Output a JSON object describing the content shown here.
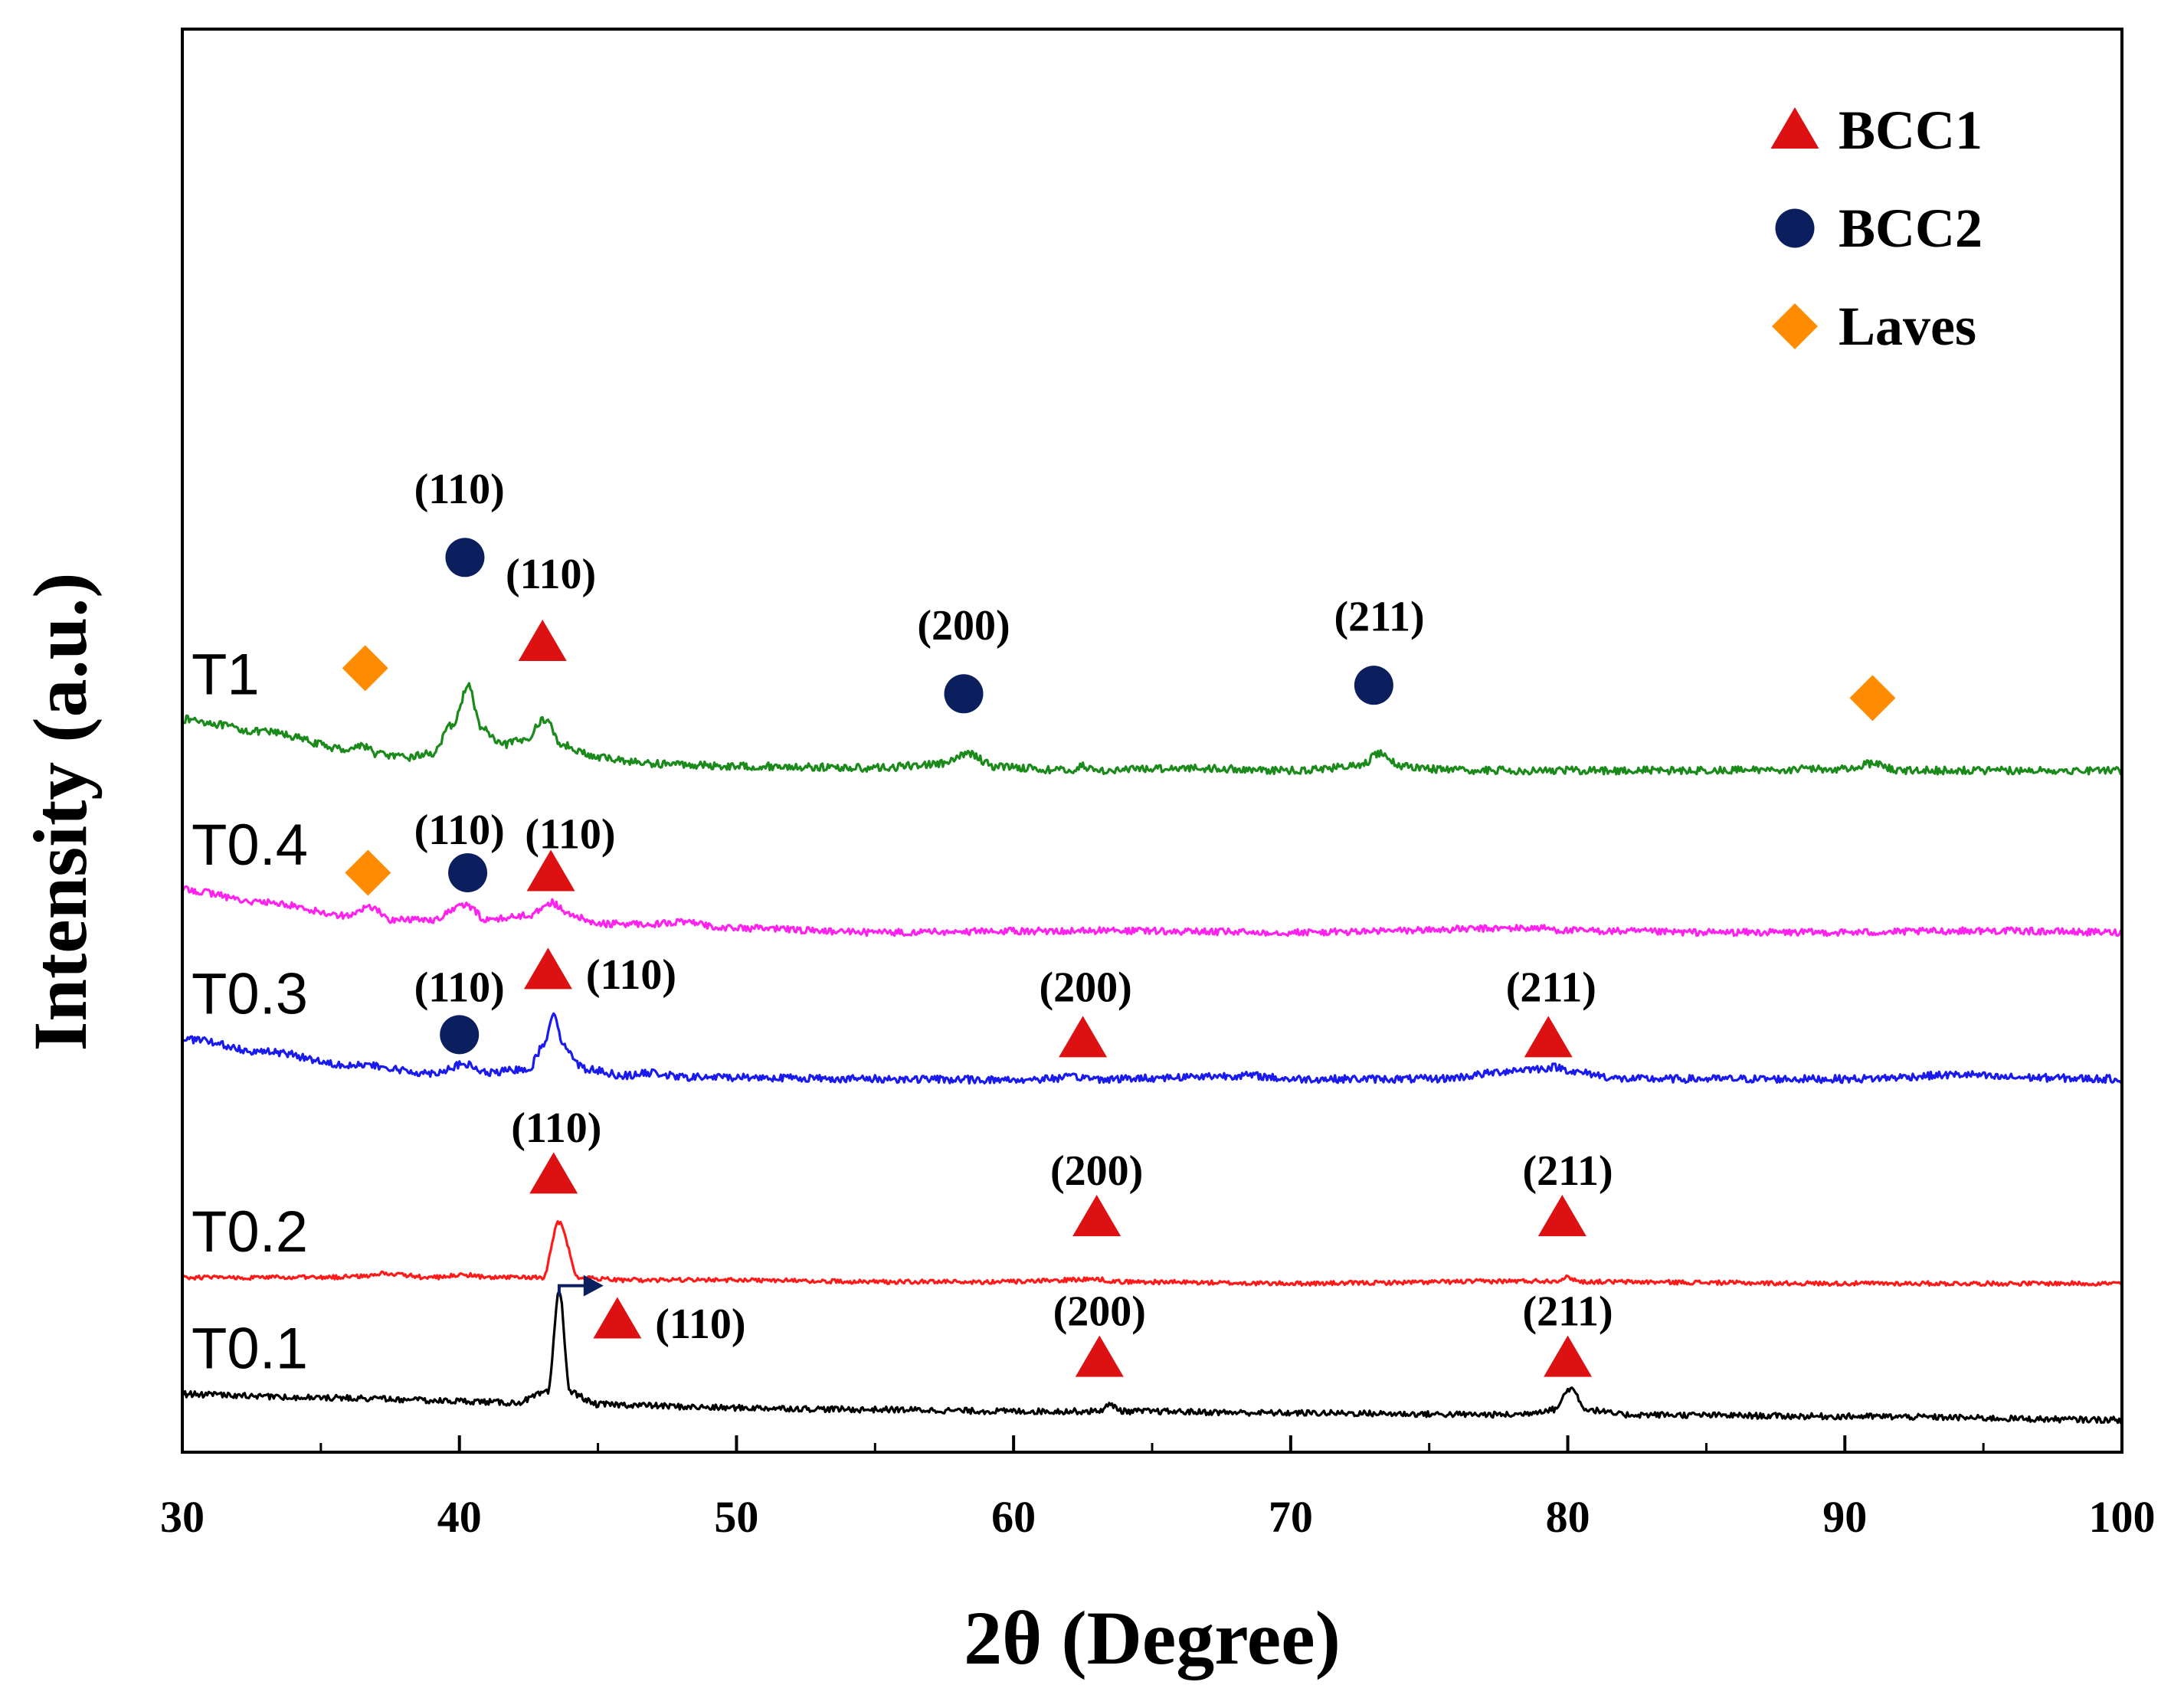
{
  "chart_data": {
    "type": "line",
    "title": "",
    "xlabel": "2θ (Degree)",
    "ylabel": "Intensity (a.u.)",
    "xlim": [
      30,
      100
    ],
    "xticks": [
      30,
      40,
      50,
      60,
      70,
      80,
      90,
      100
    ],
    "yticks_visible": false,
    "legend": {
      "placement": "top-right",
      "entries": [
        {
          "label": "BCC1",
          "marker": "triangle",
          "color": "#dd1111"
        },
        {
          "label": "BCC2",
          "marker": "circle",
          "color": "#0b1f5e"
        },
        {
          "label": "Laves",
          "marker": "diamond",
          "color": "#ff8c00"
        }
      ]
    },
    "series": [
      {
        "name": "T1",
        "color": "#1a8a1a",
        "baseline": 8.2,
        "noise": 0.045,
        "x": [
          30,
          33,
          36,
          36.5,
          37,
          38,
          39,
          39.8,
          40.3,
          40.8,
          41.5,
          42.3,
          43.1,
          43.7,
          45,
          47,
          50,
          55,
          57.5,
          58.4,
          59.3,
          62,
          62.5,
          63,
          66,
          70,
          72.5,
          73.2,
          74,
          76,
          80,
          85,
          90,
          91,
          92,
          95,
          100
        ],
        "y": [
          8.6,
          8.45,
          8.25,
          8.3,
          8.2,
          8.15,
          8.2,
          8.55,
          9.0,
          8.5,
          8.3,
          8.35,
          8.6,
          8.3,
          8.15,
          8.08,
          8.05,
          8.03,
          8.08,
          8.2,
          8.05,
          8.0,
          8.05,
          8.0,
          8.03,
          8.0,
          8.05,
          8.2,
          8.05,
          8.0,
          8.0,
          8.0,
          8.02,
          8.08,
          8.0,
          8.0,
          8.0
        ]
      },
      {
        "name": "T0.4",
        "color": "#ff22ee",
        "baseline": 6.2,
        "noise": 0.04,
        "x": [
          30,
          33,
          36,
          36.8,
          37.5,
          39,
          40.2,
          41,
          42.5,
          43.3,
          44,
          45,
          47,
          47.8,
          50,
          55,
          62.5,
          70,
          79,
          80,
          85,
          90,
          95,
          100
        ],
        "y": [
          6.6,
          6.45,
          6.3,
          6.4,
          6.25,
          6.25,
          6.42,
          6.25,
          6.3,
          6.45,
          6.3,
          6.2,
          6.2,
          6.22,
          6.15,
          6.1,
          6.12,
          6.1,
          6.15,
          6.12,
          6.1,
          6.1,
          6.12,
          6.1
        ]
      },
      {
        "name": "T0.3",
        "color": "#1a1aee",
        "baseline": 4.5,
        "noise": 0.045,
        "x": [
          30,
          33,
          36,
          39,
          40.2,
          41,
          42.5,
          43,
          43.4,
          43.8,
          44.5,
          46,
          47,
          48,
          50,
          55,
          60,
          62.5,
          63,
          68.5,
          70,
          75,
          79,
          79.5,
          80.5,
          82,
          90,
          94.5,
          95.5,
          100
        ],
        "y": [
          4.85,
          4.7,
          4.55,
          4.45,
          4.55,
          4.45,
          4.5,
          4.75,
          5.15,
          4.75,
          4.5,
          4.42,
          4.45,
          4.4,
          4.4,
          4.38,
          4.37,
          4.4,
          4.38,
          4.42,
          4.38,
          4.38,
          4.5,
          4.52,
          4.45,
          4.38,
          4.38,
          4.43,
          4.4,
          4.38
        ]
      },
      {
        "name": "T0.2",
        "color": "#ff1a1a",
        "baseline": 2.0,
        "noise": 0.025,
        "x": [
          30,
          35,
          36.8,
          37.2,
          39,
          40.2,
          41,
          43,
          43.6,
          44.3,
          46,
          50,
          55,
          60,
          63,
          63.8,
          70,
          79.5,
          80,
          80.5,
          90,
          100
        ],
        "y": [
          2.05,
          2.05,
          2.07,
          2.1,
          2.05,
          2.08,
          2.05,
          2.05,
          2.7,
          2.05,
          2.02,
          2.02,
          2.0,
          2.0,
          2.03,
          2.0,
          1.98,
          2.01,
          2.05,
          2.0,
          1.98,
          1.98
        ]
      },
      {
        "name": "T0.1",
        "color": "#000000",
        "baseline": 0.5,
        "noise": 0.035,
        "x": [
          30,
          35,
          40,
          42,
          43.2,
          43.6,
          44.0,
          45,
          50,
          55,
          60,
          63,
          63.5,
          64,
          70,
          78,
          79.5,
          80.1,
          80.7,
          82,
          90,
          100
        ],
        "y": [
          0.68,
          0.64,
          0.6,
          0.58,
          0.7,
          1.9,
          0.7,
          0.56,
          0.52,
          0.5,
          0.48,
          0.48,
          0.55,
          0.48,
          0.46,
          0.44,
          0.5,
          0.75,
          0.5,
          0.44,
          0.42,
          0.38
        ]
      }
    ],
    "sample_labels": [
      {
        "text": "T1",
        "series": "T1"
      },
      {
        "text": "T0.4",
        "series": "T0.4"
      },
      {
        "text": "T0.3",
        "series": "T0.3"
      },
      {
        "text": "T0.2",
        "series": "T0.2"
      },
      {
        "text": "T0.1",
        "series": "T0.1"
      }
    ],
    "peak_annotations": [
      {
        "series": "T1",
        "phase": "Laves",
        "x": 36.6,
        "y": 9.2
      },
      {
        "series": "T1",
        "phase": "BCC2",
        "x": 40.2,
        "y": 10.5,
        "label": "(110)",
        "label_x": 40.0,
        "label_y": 11.3
      },
      {
        "series": "T1",
        "phase": "BCC1",
        "x": 43.0,
        "y": 9.5,
        "label": "(110)",
        "label_x": 43.3,
        "label_y": 10.3
      },
      {
        "series": "T1",
        "phase": "BCC2",
        "x": 58.2,
        "y": 8.9,
        "label": "(200)",
        "label_x": 58.2,
        "label_y": 9.7
      },
      {
        "series": "T1",
        "phase": "BCC2",
        "x": 73.0,
        "y": 9.0,
        "label": "(211)",
        "label_x": 73.2,
        "label_y": 9.8
      },
      {
        "series": "T1",
        "phase": "Laves",
        "x": 91.0,
        "y": 8.85
      },
      {
        "series": "T0.4",
        "phase": "Laves",
        "x": 36.7,
        "y": 6.8
      },
      {
        "series": "T0.4",
        "phase": "BCC2",
        "x": 40.3,
        "y": 6.8,
        "label": "(110)",
        "label_x": 40.0,
        "label_y": 7.3
      },
      {
        "series": "T0.4",
        "phase": "BCC1",
        "x": 43.3,
        "y": 6.8,
        "label": "(110)",
        "label_x": 44.0,
        "label_y": 7.25
      },
      {
        "series": "T0.3",
        "phase": "BCC1",
        "x": 43.2,
        "y": 5.65,
        "label": "(110)",
        "label_x": 46.2,
        "label_y": 5.6
      },
      {
        "series": "T0.3",
        "phase": "BCC2",
        "x": 40.0,
        "y": 4.9,
        "label": "(110)",
        "label_x": 40.0,
        "label_y": 5.45
      },
      {
        "series": "T0.3",
        "phase": "BCC1",
        "x": 62.5,
        "y": 4.85,
        "label": "(200)",
        "label_x": 62.6,
        "label_y": 5.45
      },
      {
        "series": "T0.3",
        "phase": "BCC1",
        "x": 79.3,
        "y": 4.85,
        "label": "(211)",
        "label_x": 79.4,
        "label_y": 5.45
      },
      {
        "series": "T0.2",
        "phase": "BCC1",
        "x": 43.4,
        "y": 3.25,
        "label": "(110)",
        "label_x": 43.5,
        "label_y": 3.8
      },
      {
        "series": "T0.2",
        "phase": "BCC1",
        "x": 63.0,
        "y": 2.75,
        "label": "(200)",
        "label_x": 63.0,
        "label_y": 3.3
      },
      {
        "series": "T0.2",
        "phase": "BCC1",
        "x": 79.8,
        "y": 2.75,
        "label": "(211)",
        "label_x": 80.0,
        "label_y": 3.3
      },
      {
        "series": "T0.1",
        "phase": "BCC1",
        "x": 45.7,
        "y": 1.55,
        "label": "(110)",
        "label_x": 48.7,
        "label_y": 1.5
      },
      {
        "series": "T0.1",
        "phase": "BCC1",
        "x": 63.1,
        "y": 1.1,
        "label": "(200)",
        "label_x": 63.1,
        "label_y": 1.65
      },
      {
        "series": "T0.1",
        "phase": "BCC1",
        "x": 80.0,
        "y": 1.1,
        "label": "(211)",
        "label_x": 80.0,
        "label_y": 1.65
      }
    ],
    "shift_arrow": {
      "series": "T0.1",
      "from_x": 43.6,
      "to_x": 45.2,
      "y": 1.9,
      "color": "#0b1f5e"
    }
  }
}
